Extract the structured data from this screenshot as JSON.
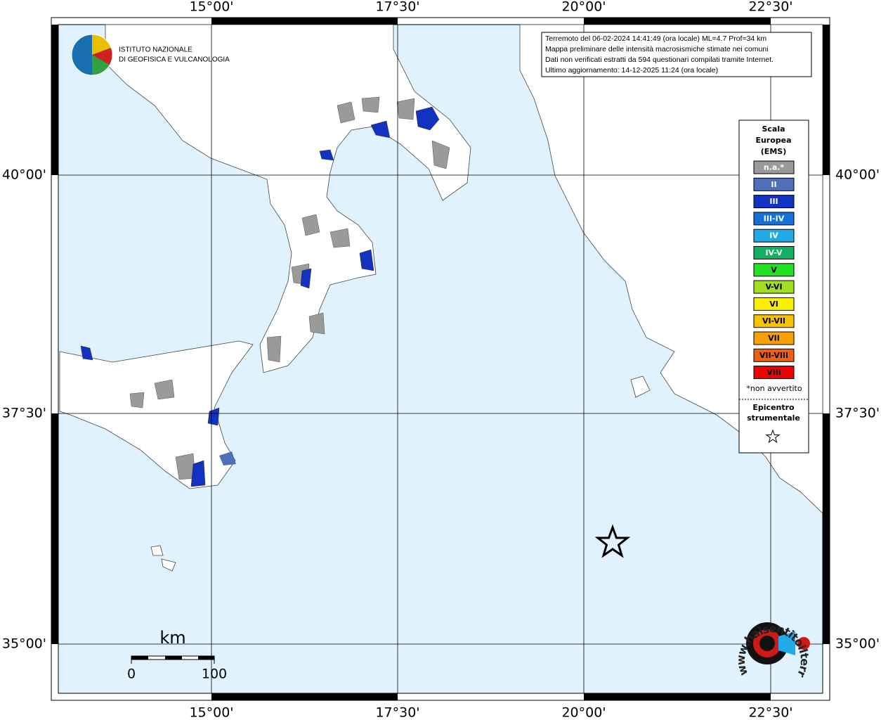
{
  "info": [
    "Terremoto del 06-02-2024 14:41:49 (ora locale) ML=4.7 Prof=34 km",
    "Mappa preliminare delle intensità macrosismiche stimate nei comuni",
    "Dati non verificati estratti da 594 questionari compilati tramite Internet.",
    "Ultimo aggiornamento: 14-12-2025 11:24 (ora locale)"
  ],
  "logo": [
    "ISTITUTO NAZIONALE",
    "DI GEOFISICA E VULCANOLOGIA"
  ],
  "lon_labels": [
    "15°00'",
    "17°30'",
    "20°00'",
    "22°30'"
  ],
  "lat_labels": [
    "40°00'",
    "37°30'",
    "35°00'"
  ],
  "legend": {
    "title": [
      "Scala",
      "Europea",
      "(EMS)"
    ],
    "items": [
      {
        "label": "n.a.*",
        "color": "#9a9a9a"
      },
      {
        "label": "II",
        "color": "#4f6fb8"
      },
      {
        "label": "III",
        "color": "#1232c2"
      },
      {
        "label": "III-IV",
        "color": "#1472d6"
      },
      {
        "label": "IV",
        "color": "#22a9e8"
      },
      {
        "label": "IV-V",
        "color": "#12b060"
      },
      {
        "label": "V",
        "color": "#22e022"
      },
      {
        "label": "V-VI",
        "color": "#a2e022"
      },
      {
        "label": "VI",
        "color": "#f8f000"
      },
      {
        "label": "VI-VII",
        "color": "#f8c200"
      },
      {
        "label": "VII",
        "color": "#f8a000"
      },
      {
        "label": "VII-VIII",
        "color": "#f06010"
      },
      {
        "label": "VIII",
        "color": "#f00000"
      }
    ],
    "note": "*non avvertito",
    "epicenter": [
      "Epicentro",
      "strumentale"
    ]
  },
  "scale_bar": {
    "unit": "km",
    "min": 0,
    "max": 100
  },
  "watermark": "www.haisentitoilterremoto.it"
}
